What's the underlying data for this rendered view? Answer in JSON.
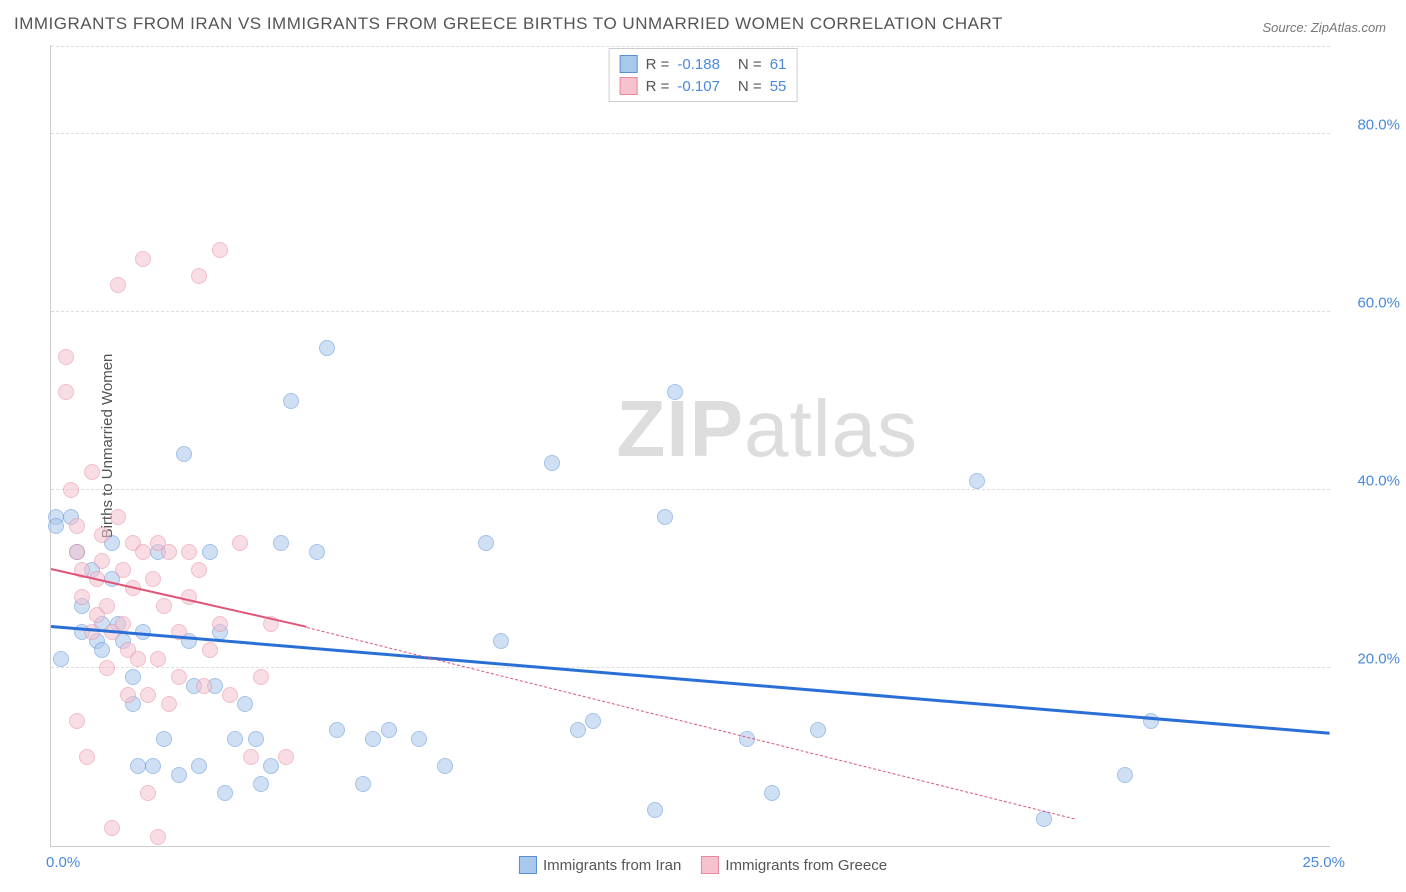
{
  "title": "IMMIGRANTS FROM IRAN VS IMMIGRANTS FROM GREECE BIRTHS TO UNMARRIED WOMEN CORRELATION CHART",
  "source": "Source: ZipAtlas.com",
  "ylabel": "Births to Unmarried Women",
  "watermark_bold": "ZIP",
  "watermark_light": "atlas",
  "chart": {
    "type": "scatter",
    "xlim": [
      0,
      25
    ],
    "ylim": [
      0,
      90
    ],
    "yticks": [
      20,
      40,
      60,
      80
    ],
    "ytick_labels": [
      "20.0%",
      "40.0%",
      "60.0%",
      "80.0%"
    ],
    "xtick_left": "0.0%",
    "xtick_right": "25.0%",
    "background_color": "#ffffff",
    "grid_color": "#dddddd",
    "axis_color": "#cccccc",
    "marker_radius": 8,
    "marker_opacity": 0.55,
    "series": [
      {
        "name": "Immigrants from Iran",
        "fill": "#a8c8ec",
        "stroke": "#5b8fd6",
        "trend_color": "#2a6fd6",
        "trend_width": 3,
        "trend_dash": "solid",
        "R": "-0.188",
        "N": "61",
        "trend": {
          "x1": 0,
          "y1": 24.5,
          "x2": 25,
          "y2": 12.5
        },
        "points": [
          [
            0.1,
            37
          ],
          [
            0.1,
            36
          ],
          [
            0.4,
            37
          ],
          [
            0.5,
            33
          ],
          [
            0.6,
            27
          ],
          [
            0.6,
            24
          ],
          [
            0.9,
            23
          ],
          [
            0.8,
            31
          ],
          [
            1.0,
            22
          ],
          [
            1.0,
            25
          ],
          [
            1.2,
            34
          ],
          [
            1.2,
            30
          ],
          [
            1.3,
            25
          ],
          [
            1.4,
            23
          ],
          [
            1.6,
            19
          ],
          [
            1.6,
            16
          ],
          [
            1.7,
            9
          ],
          [
            2.0,
            9
          ],
          [
            1.8,
            24
          ],
          [
            2.1,
            33
          ],
          [
            2.2,
            12
          ],
          [
            2.5,
            8
          ],
          [
            2.6,
            44
          ],
          [
            2.7,
            23
          ],
          [
            2.8,
            18
          ],
          [
            2.9,
            9
          ],
          [
            3.1,
            33
          ],
          [
            3.2,
            18
          ],
          [
            3.3,
            24
          ],
          [
            3.4,
            6
          ],
          [
            3.6,
            12
          ],
          [
            3.8,
            16
          ],
          [
            4.0,
            12
          ],
          [
            4.1,
            7
          ],
          [
            4.3,
            9
          ],
          [
            4.5,
            34
          ],
          [
            4.7,
            50
          ],
          [
            5.4,
            56
          ],
          [
            5.2,
            33
          ],
          [
            5.6,
            13
          ],
          [
            6.1,
            7
          ],
          [
            6.3,
            12
          ],
          [
            6.6,
            13
          ],
          [
            7.2,
            12
          ],
          [
            7.7,
            9
          ],
          [
            8.5,
            34
          ],
          [
            8.8,
            23
          ],
          [
            9.8,
            43
          ],
          [
            10.3,
            13
          ],
          [
            10.6,
            14
          ],
          [
            11.8,
            4
          ],
          [
            12.0,
            37
          ],
          [
            12.2,
            51
          ],
          [
            13.6,
            12
          ],
          [
            14.1,
            6
          ],
          [
            15.0,
            13
          ],
          [
            18.1,
            41
          ],
          [
            19.4,
            3
          ],
          [
            21.0,
            8
          ],
          [
            21.5,
            14
          ],
          [
            0.2,
            21
          ]
        ]
      },
      {
        "name": "Immigrants from Greece",
        "fill": "#f5c2ce",
        "stroke": "#e78aa0",
        "trend_color": "#e05577",
        "trend_width": 2,
        "trend_dash": "solid_then_dashed",
        "R": "-0.107",
        "N": "55",
        "trend": {
          "x1": 0,
          "y1": 31,
          "x2_solid": 5.0,
          "y2_solid": 24.5,
          "x2": 20,
          "y2": 3
        },
        "points": [
          [
            0.3,
            55
          ],
          [
            0.3,
            51
          ],
          [
            0.4,
            40
          ],
          [
            0.5,
            36
          ],
          [
            0.5,
            33
          ],
          [
            0.6,
            31
          ],
          [
            0.6,
            28
          ],
          [
            0.7,
            10
          ],
          [
            0.8,
            24
          ],
          [
            0.8,
            42
          ],
          [
            0.9,
            30
          ],
          [
            0.9,
            26
          ],
          [
            1.0,
            35
          ],
          [
            1.0,
            32
          ],
          [
            1.1,
            27
          ],
          [
            1.1,
            20
          ],
          [
            1.2,
            24
          ],
          [
            1.3,
            63
          ],
          [
            1.3,
            37
          ],
          [
            1.4,
            31
          ],
          [
            1.4,
            25
          ],
          [
            1.5,
            17
          ],
          [
            1.5,
            22
          ],
          [
            1.6,
            34
          ],
          [
            1.6,
            29
          ],
          [
            1.7,
            21
          ],
          [
            1.8,
            66
          ],
          [
            1.8,
            33
          ],
          [
            1.9,
            17
          ],
          [
            1.9,
            6
          ],
          [
            2.0,
            30
          ],
          [
            2.1,
            34
          ],
          [
            2.1,
            21
          ],
          [
            2.2,
            27
          ],
          [
            2.3,
            16
          ],
          [
            2.3,
            33
          ],
          [
            2.5,
            24
          ],
          [
            2.5,
            19
          ],
          [
            2.7,
            33
          ],
          [
            2.7,
            28
          ],
          [
            2.9,
            64
          ],
          [
            2.9,
            31
          ],
          [
            3.0,
            18
          ],
          [
            3.1,
            22
          ],
          [
            3.3,
            67
          ],
          [
            3.3,
            25
          ],
          [
            3.5,
            17
          ],
          [
            3.7,
            34
          ],
          [
            3.9,
            10
          ],
          [
            4.1,
            19
          ],
          [
            4.3,
            25
          ],
          [
            4.6,
            10
          ],
          [
            2.1,
            1
          ],
          [
            1.2,
            2
          ],
          [
            0.5,
            14
          ]
        ]
      }
    ]
  },
  "legend_bottom": [
    {
      "label": "Immigrants from Iran",
      "fill": "#a8c8ec",
      "stroke": "#5b8fd6"
    },
    {
      "label": "Immigrants from Greece",
      "fill": "#f5c2ce",
      "stroke": "#e78aa0"
    }
  ]
}
